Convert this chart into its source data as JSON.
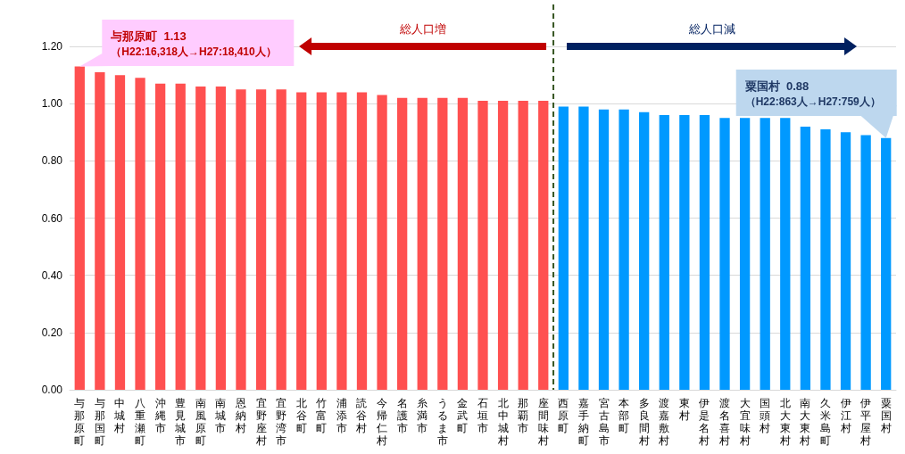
{
  "chart_data": {
    "type": "bar",
    "categories": [
      "与那原町",
      "与那国町",
      "中城村",
      "八重瀬町",
      "沖縄市",
      "豊見城市",
      "南風原町",
      "南城市",
      "恩納村",
      "宜野座村",
      "宜野湾市",
      "北谷町",
      "竹富町",
      "浦添市",
      "読谷村",
      "今帰仁村",
      "名護市",
      "糸満市",
      "うるま市",
      "金武町",
      "石垣市",
      "北中城村",
      "那覇市",
      "座間味村",
      "西原町",
      "嘉手納町",
      "宮古島市",
      "本部町",
      "多良間村",
      "渡嘉敷村",
      "東村",
      "伊是名村",
      "渡名喜村",
      "大宜味村",
      "国頭村",
      "北大東村",
      "南大東村",
      "久米島町",
      "伊江村",
      "伊平屋村",
      "粟国村"
    ],
    "values": [
      1.13,
      1.11,
      1.1,
      1.09,
      1.07,
      1.07,
      1.06,
      1.06,
      1.05,
      1.05,
      1.05,
      1.04,
      1.04,
      1.04,
      1.04,
      1.03,
      1.02,
      1.02,
      1.02,
      1.02,
      1.01,
      1.01,
      1.01,
      1.01,
      0.99,
      0.99,
      0.98,
      0.98,
      0.97,
      0.96,
      0.96,
      0.96,
      0.95,
      0.95,
      0.95,
      0.95,
      0.92,
      0.91,
      0.9,
      0.89,
      0.88
    ],
    "colors": [
      "#ff5050",
      "#ff5050",
      "#ff5050",
      "#ff5050",
      "#ff5050",
      "#ff5050",
      "#ff5050",
      "#ff5050",
      "#ff5050",
      "#ff5050",
      "#ff5050",
      "#ff5050",
      "#ff5050",
      "#ff5050",
      "#ff5050",
      "#ff5050",
      "#ff5050",
      "#ff5050",
      "#ff5050",
      "#ff5050",
      "#ff5050",
      "#ff5050",
      "#ff5050",
      "#ff5050",
      "#0099ff",
      "#0099ff",
      "#0099ff",
      "#0099ff",
      "#0099ff",
      "#0099ff",
      "#0099ff",
      "#0099ff",
      "#0099ff",
      "#0099ff",
      "#0099ff",
      "#0099ff",
      "#0099ff",
      "#0099ff",
      "#0099ff",
      "#0099ff",
      "#0099ff"
    ],
    "ylim": [
      0,
      1.3
    ],
    "yticks": [
      {
        "value": 0,
        "label": "0.00"
      },
      {
        "value": 0.2,
        "label": "0.20"
      },
      {
        "value": 0.4,
        "label": "0.40"
      },
      {
        "value": 0.6,
        "label": "0.60"
      },
      {
        "value": 0.8,
        "label": "0.80"
      },
      {
        "value": 1.0,
        "label": "1.00"
      },
      {
        "value": 1.2,
        "label": "1.20"
      }
    ],
    "grid": "y",
    "annotations": [
      {
        "text": "与那原町  1.13\n（H22:16,318人→H27:18,410人）",
        "x": "与那原町",
        "y": 1.13
      },
      {
        "text": "粟国村  0.88\n（H22:863人→H27:759人）",
        "x": "粟国村",
        "y": 0.88
      },
      "総人口増",
      "総人口減"
    ]
  }
}
